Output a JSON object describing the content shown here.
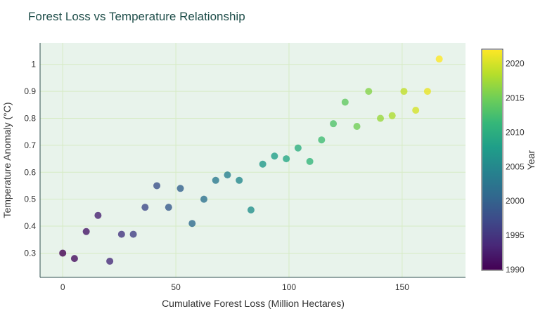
{
  "chart_data": {
    "type": "scatter",
    "title": "Forest Loss vs Temperature Relationship",
    "xlabel": "Cumulative Forest Loss (Million Hectares)",
    "ylabel": "Temperature Anomaly (°C)",
    "xlim": [
      -10,
      178
    ],
    "ylim": [
      0.21,
      1.08
    ],
    "x_ticks": [
      0,
      50,
      100,
      150
    ],
    "y_ticks": [
      0.3,
      0.4,
      0.5,
      0.6,
      0.7,
      0.8,
      0.9,
      1
    ],
    "grid": true,
    "colorbar": {
      "title": "Year",
      "range": [
        1990,
        2022
      ],
      "ticks": [
        1990,
        1995,
        2000,
        2005,
        2010,
        2015,
        2020
      ],
      "colorscale": "viridis"
    },
    "points": [
      {
        "x": 0,
        "y": 0.3,
        "year": 1990
      },
      {
        "x": 5.2,
        "y": 0.28,
        "year": 1991
      },
      {
        "x": 10.4,
        "y": 0.38,
        "year": 1992
      },
      {
        "x": 15.6,
        "y": 0.44,
        "year": 1993
      },
      {
        "x": 20.8,
        "y": 0.27,
        "year": 1994
      },
      {
        "x": 26,
        "y": 0.37,
        "year": 1995
      },
      {
        "x": 31.2,
        "y": 0.37,
        "year": 1996
      },
      {
        "x": 36.4,
        "y": 0.47,
        "year": 1997
      },
      {
        "x": 41.6,
        "y": 0.55,
        "year": 1998
      },
      {
        "x": 46.8,
        "y": 0.47,
        "year": 1999
      },
      {
        "x": 52,
        "y": 0.54,
        "year": 2000
      },
      {
        "x": 57.2,
        "y": 0.41,
        "year": 2001
      },
      {
        "x": 62.4,
        "y": 0.5,
        "year": 2002
      },
      {
        "x": 67.6,
        "y": 0.57,
        "year": 2003
      },
      {
        "x": 72.8,
        "y": 0.59,
        "year": 2004
      },
      {
        "x": 78,
        "y": 0.57,
        "year": 2005
      },
      {
        "x": 83.2,
        "y": 0.46,
        "year": 2006
      },
      {
        "x": 88.4,
        "y": 0.63,
        "year": 2007
      },
      {
        "x": 93.6,
        "y": 0.66,
        "year": 2008
      },
      {
        "x": 98.8,
        "y": 0.65,
        "year": 2009
      },
      {
        "x": 104,
        "y": 0.69,
        "year": 2010
      },
      {
        "x": 109.2,
        "y": 0.64,
        "year": 2011
      },
      {
        "x": 114.4,
        "y": 0.72,
        "year": 2012
      },
      {
        "x": 119.6,
        "y": 0.78,
        "year": 2013
      },
      {
        "x": 124.8,
        "y": 0.86,
        "year": 2014
      },
      {
        "x": 130,
        "y": 0.77,
        "year": 2015
      },
      {
        "x": 135.2,
        "y": 0.9,
        "year": 2016
      },
      {
        "x": 140.4,
        "y": 0.8,
        "year": 2017
      },
      {
        "x": 145.6,
        "y": 0.81,
        "year": 2018
      },
      {
        "x": 150.8,
        "y": 0.9,
        "year": 2019
      },
      {
        "x": 156,
        "y": 0.83,
        "year": 2020
      },
      {
        "x": 161.2,
        "y": 0.9,
        "year": 2021
      },
      {
        "x": 166.4,
        "y": 1.02,
        "year": 2022
      }
    ]
  }
}
